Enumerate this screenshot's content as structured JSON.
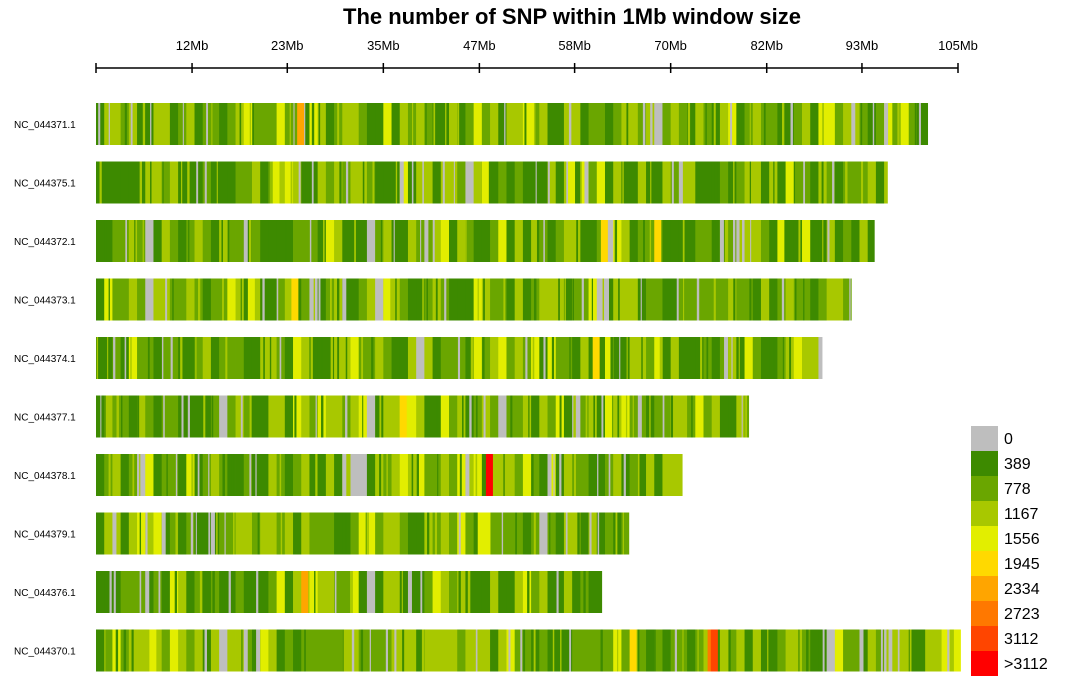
{
  "chart_data": {
    "type": "heatmap",
    "title": "The number of SNP within 1Mb window size",
    "x_axis": {
      "unit": "Mb",
      "range_mb": [
        0,
        105
      ],
      "position": "top",
      "ticks": [
        {
          "value": 11.7,
          "label": "12Mb"
        },
        {
          "value": 23.3,
          "label": "23Mb"
        },
        {
          "value": 35.0,
          "label": "35Mb"
        },
        {
          "value": 46.7,
          "label": "47Mb"
        },
        {
          "value": 58.3,
          "label": "58Mb"
        },
        {
          "value": 70.0,
          "label": "70Mb"
        },
        {
          "value": 81.7,
          "label": "82Mb"
        },
        {
          "value": 93.3,
          "label": "93Mb"
        },
        {
          "value": 105.0,
          "label": "105Mb"
        }
      ]
    },
    "legend": {
      "position": "bottom-right",
      "entries": [
        {
          "label": "0",
          "color": "#bebebe"
        },
        {
          "label": "389",
          "color": "#3d8a00"
        },
        {
          "label": "778",
          "color": "#6aa600"
        },
        {
          "label": "1167",
          "color": "#a8c800"
        },
        {
          "label": "1556",
          "color": "#e2ee00"
        },
        {
          "label": "1945",
          "color": "#ffd900"
        },
        {
          "label": "2334",
          "color": "#ffa500"
        },
        {
          "label": "2723",
          "color": "#ff7800"
        },
        {
          "label": "3112",
          "color": "#ff4500"
        },
        {
          "label": ">3112",
          "color": "#ff0000"
        }
      ]
    },
    "chromosomes": [
      {
        "name": "NC_044371.1",
        "length_mb": 101.2,
        "seed": 11,
        "hotspots": [
          {
            "mb": 24.5,
            "level": 6
          },
          {
            "mb": 52.5,
            "level": 4
          }
        ],
        "gaps": [
          25.0,
          92.0,
          96.0
        ]
      },
      {
        "name": "NC_044375.1",
        "length_mb": 96.4,
        "seed": 23,
        "hotspots": [
          {
            "mb": 21.5,
            "level": 4
          },
          {
            "mb": 47.0,
            "level": 4
          },
          {
            "mb": 57.5,
            "level": 4
          }
        ],
        "gaps": [
          37.0,
          59.5,
          71.0
        ]
      },
      {
        "name": "NC_044372.1",
        "length_mb": 94.8,
        "seed": 37,
        "hotspots": [
          {
            "mb": 61.5,
            "level": 5
          },
          {
            "mb": 68.0,
            "level": 5
          },
          {
            "mb": 83.0,
            "level": 4
          }
        ],
        "gaps": [
          18.0,
          40.0,
          76.0
        ]
      },
      {
        "name": "NC_044373.1",
        "length_mb": 92.0,
        "seed": 41,
        "hotspots": [
          {
            "mb": 23.8,
            "level": 5
          },
          {
            "mb": 18.5,
            "level": 4
          },
          {
            "mb": 35.0,
            "level": 4
          }
        ],
        "gaps": [
          30.0,
          62.0
        ]
      },
      {
        "name": "NC_044374.1",
        "length_mb": 88.3,
        "seed": 53,
        "hotspots": [
          {
            "mb": 60.5,
            "level": 5
          }
        ],
        "gaps": [
          76.5,
          88.0
        ]
      },
      {
        "name": "NC_044377.1",
        "length_mb": 79.5,
        "seed": 67,
        "hotspots": [
          {
            "mb": 37.0,
            "level": 5
          },
          {
            "mb": 62.0,
            "level": 4
          }
        ],
        "gaps": [
          33.0,
          66.0
        ]
      },
      {
        "name": "NC_044378.1",
        "length_mb": 71.4,
        "seed": 71,
        "hotspots": [
          {
            "mb": 47.5,
            "level": 9
          }
        ],
        "gaps": [
          30.0,
          45.0,
          55.0
        ]
      },
      {
        "name": "NC_044379.1",
        "length_mb": 64.9,
        "seed": 83,
        "hotspots": [
          {
            "mb": 46.5,
            "level": 4
          },
          {
            "mb": 47.2,
            "level": 4
          },
          {
            "mb": 32.0,
            "level": 4
          }
        ],
        "gaps": [
          2.0,
          8.0,
          14.0
        ]
      },
      {
        "name": "NC_044376.1",
        "length_mb": 61.6,
        "seed": 97,
        "hotspots": [
          {
            "mb": 25.0,
            "level": 6
          }
        ],
        "gaps": [
          6.0,
          38.0
        ]
      },
      {
        "name": "NC_044370.1",
        "length_mb": 105.0,
        "seed": 103,
        "hotspots": [
          {
            "mb": 74.5,
            "level": 7
          },
          {
            "mb": 74.9,
            "level": 8
          },
          {
            "mb": 65.0,
            "level": 5
          },
          {
            "mb": 6.5,
            "level": 4
          },
          {
            "mb": 104.5,
            "level": 4
          }
        ],
        "gaps": [
          18.0,
          19.5,
          93.0
        ]
      }
    ]
  }
}
